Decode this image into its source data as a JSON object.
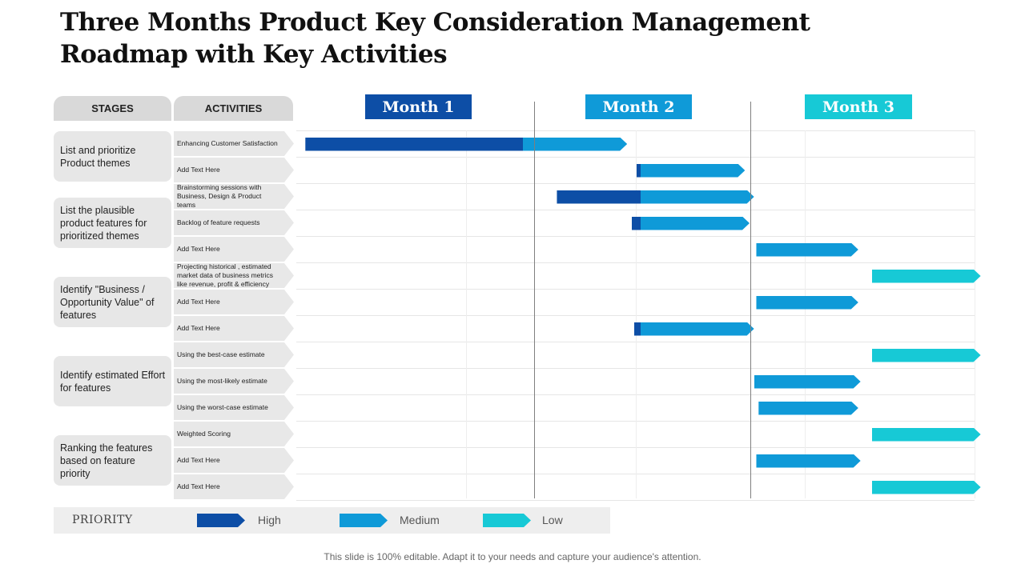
{
  "title": "Three Months Product Key Consideration Management Roadmap with Key Activities",
  "headers": {
    "stages": "STAGES",
    "activities": "ACTIVITIES"
  },
  "months": [
    "Month 1",
    "Month 2",
    "Month 3"
  ],
  "colors": {
    "high": "#0d4ea6",
    "medium": "#0f9ad8",
    "low": "#17c9d6",
    "month1": "#0d4ea6",
    "month2": "#0f9ad8",
    "month3": "#17c9d6"
  },
  "stages": [
    {
      "label": "List and prioritize Product themes"
    },
    {
      "label": "List the plausible product features for prioritized themes"
    },
    {
      "label": "Identify \"Business / Opportunity Value\" of features"
    },
    {
      "label": "Identify estimated Effort for features"
    },
    {
      "label": "Ranking the features based on feature priority"
    }
  ],
  "activities": [
    {
      "label": "Enhancing Customer Satisfaction",
      "start": 0.04,
      "end": 1.46,
      "m2": 1.0,
      "m3": 2.0
    },
    {
      "label": "Add Text Here",
      "start": 1.5,
      "end": 1.98,
      "m2": 1.52,
      "m3": 2.0
    },
    {
      "label": "Brainstorming sessions with Business, Design & Product teams",
      "start": 1.15,
      "end": 2.02,
      "m2": 1.52,
      "m3": 2.1
    },
    {
      "label": "Backlog of feature requests",
      "start": 1.48,
      "end": 2.0,
      "m2": 1.52,
      "m3": 2.1
    },
    {
      "label": "Add Text Here",
      "start": 2.03,
      "end": 2.48,
      "m2": 2.0,
      "m3": 2.52
    },
    {
      "label": "Projecting historical , estimated market data of business metrics like revenue, profit & efficiency",
      "start": 2.54,
      "end": 3.02,
      "m2": 2.0,
      "m3": 2.52
    },
    {
      "label": "Add Text Here",
      "start": 2.03,
      "end": 2.48,
      "m2": 2.0,
      "m3": 2.52
    },
    {
      "label": "Add Text Here",
      "start": 1.49,
      "end": 2.02,
      "m2": 1.52,
      "m3": 2.1
    },
    {
      "label": "Using the best-case estimate",
      "start": 2.54,
      "end": 3.02,
      "m2": 2.0,
      "m3": 2.52
    },
    {
      "label": "Using the most-likely estimate",
      "start": 2.02,
      "end": 2.49,
      "m2": 2.0,
      "m3": 2.52
    },
    {
      "label": "Using the worst-case estimate",
      "start": 2.04,
      "end": 2.48,
      "m2": 2.0,
      "m3": 2.52
    },
    {
      "label": "Weighted Scoring",
      "start": 2.54,
      "end": 3.02,
      "m2": 2.0,
      "m3": 2.52
    },
    {
      "label": "Add Text Here",
      "start": 2.03,
      "end": 2.49,
      "m2": 2.0,
      "m3": 2.52
    },
    {
      "label": "Add Text Here",
      "start": 2.54,
      "end": 3.02,
      "m2": 2.0,
      "m3": 2.52
    }
  ],
  "legend": {
    "title": "PRIORITY",
    "high": "High",
    "medium": "Medium",
    "low": "Low"
  },
  "footer": "This slide is 100% editable. Adapt it to your needs and capture your audience's attention."
}
